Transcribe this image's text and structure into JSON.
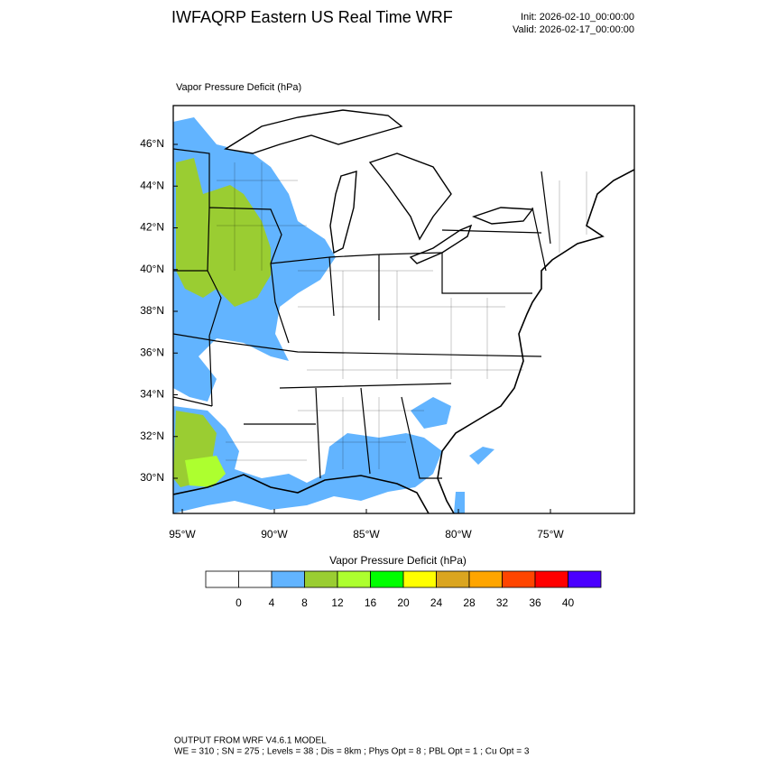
{
  "header": {
    "title": "IWFAQRP Eastern US Real Time WRF",
    "init": "Init: 2026-02-10_00:00:00",
    "valid": "Valid: 2026-02-17_00:00:00"
  },
  "map": {
    "field_label": "Vapor Pressure Deficit   (hPa)",
    "lat_labels": [
      "46°N",
      "44°N",
      "42°N",
      "40°N",
      "38°N",
      "36°N",
      "34°N",
      "32°N",
      "30°N"
    ],
    "lon_labels": [
      "95°W",
      "90°W",
      "85°W",
      "80°W",
      "75°W"
    ]
  },
  "colorbar": {
    "title": "Vapor Pressure Deficit  (hPa)",
    "colors": [
      "#ffffff",
      "#ffffff",
      "#62b4ff",
      "#9acd32",
      "#adff2f",
      "#00ff00",
      "#ffff00",
      "#daa520",
      "#ffa500",
      "#ff4500",
      "#ff0000",
      "#4b00ff"
    ],
    "ticks": [
      0,
      4,
      8,
      12,
      16,
      20,
      24,
      28,
      32,
      36,
      40
    ]
  },
  "footer": {
    "line1": "OUTPUT FROM WRF V4.6.1 MODEL",
    "line2": "WE = 310 ; SN = 275 ; Levels = 38 ; Dis = 8km ; Phys Opt = 8 ; PBL Opt = 1 ; Cu Opt = 3"
  }
}
